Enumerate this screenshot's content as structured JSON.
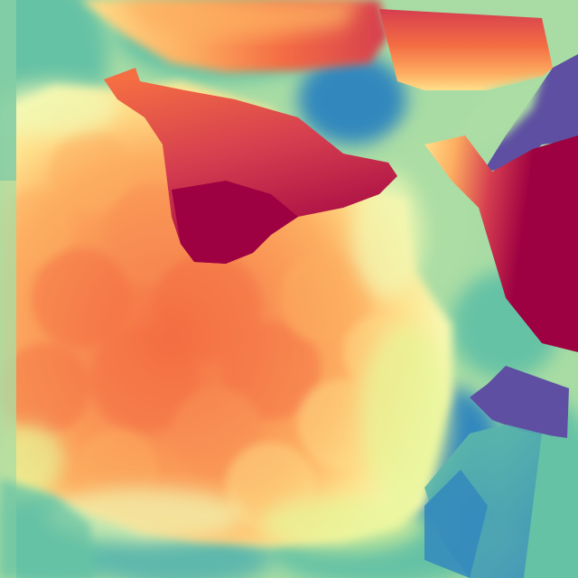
{
  "image": {
    "kind": "depth-style color map",
    "colormap": "spectral",
    "palette": {
      "dark_red": "#9e0142",
      "red": "#d53e4f",
      "orange": "#f46d43",
      "light_orange": "#fdae61",
      "pale_yellow": "#fee08b",
      "cream": "#ffffbf",
      "pale_green": "#e6f598",
      "light_green": "#abdda4",
      "teal": "#66c2a5",
      "blue": "#3288bd",
      "purple": "#5e4fa2"
    }
  }
}
